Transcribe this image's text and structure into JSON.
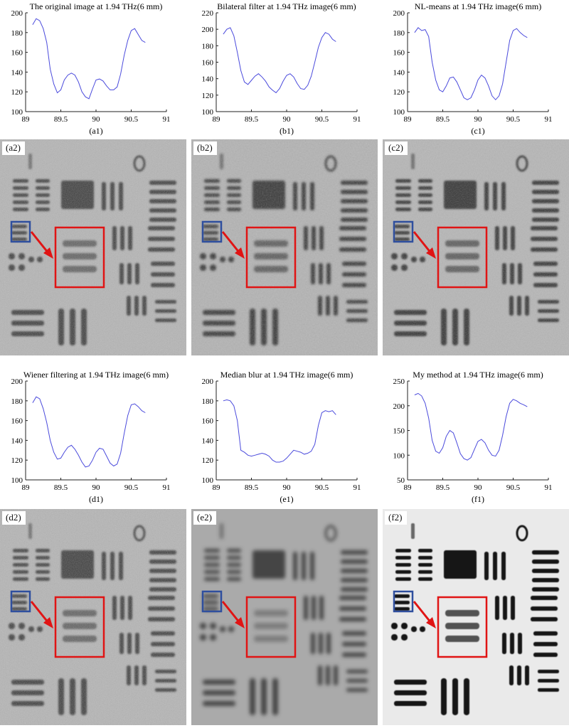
{
  "chart_data": [
    {
      "type": "line",
      "title": "The original image at 1.94 THz(6 mm)",
      "panel_label": "(a1)",
      "xlim": [
        89,
        91
      ],
      "ylim": [
        100,
        200
      ],
      "xticks": [
        89,
        89.5,
        90,
        90.5,
        91
      ],
      "yticks": [
        100,
        120,
        140,
        160,
        180,
        200
      ],
      "grid": false,
      "line_color": "#4a4adc",
      "x": [
        89.1,
        89.15,
        89.2,
        89.25,
        89.3,
        89.35,
        89.4,
        89.45,
        89.5,
        89.55,
        89.6,
        89.65,
        89.7,
        89.75,
        89.8,
        89.85,
        89.9,
        89.95,
        90.0,
        90.05,
        90.1,
        90.15,
        90.2,
        90.25,
        90.3,
        90.35,
        90.4,
        90.45,
        90.5,
        90.55,
        90.6,
        90.65,
        90.7
      ],
      "y": [
        188,
        194,
        192,
        184,
        170,
        143,
        128,
        119,
        122,
        132,
        137,
        139,
        137,
        130,
        120,
        115,
        113,
        123,
        132,
        133,
        131,
        126,
        122,
        122,
        125,
        138,
        157,
        172,
        182,
        184,
        178,
        172,
        170
      ]
    },
    {
      "type": "line",
      "title": "Bilateral filter at 1.94 THz image(6 mm)",
      "panel_label": "(b1)",
      "xlim": [
        89,
        91
      ],
      "ylim": [
        100,
        220
      ],
      "xticks": [
        89,
        89.5,
        90,
        90.5,
        91
      ],
      "yticks": [
        100,
        120,
        140,
        160,
        180,
        200,
        220
      ],
      "grid": false,
      "line_color": "#4a4adc",
      "x": [
        89.1,
        89.15,
        89.2,
        89.25,
        89.3,
        89.35,
        89.4,
        89.45,
        89.5,
        89.55,
        89.6,
        89.65,
        89.7,
        89.75,
        89.8,
        89.85,
        89.9,
        89.95,
        90.0,
        90.05,
        90.1,
        90.15,
        90.2,
        90.25,
        90.3,
        90.35,
        90.4,
        90.45,
        90.5,
        90.55,
        90.6,
        90.65,
        90.7
      ],
      "y": [
        194,
        200,
        202,
        192,
        172,
        150,
        136,
        133,
        138,
        143,
        146,
        142,
        137,
        130,
        126,
        123,
        128,
        137,
        144,
        146,
        142,
        134,
        128,
        127,
        132,
        143,
        160,
        178,
        190,
        196,
        194,
        188,
        185
      ]
    },
    {
      "type": "line",
      "title": "NL-means at 1.94 THz image(6 mm)",
      "panel_label": "(c1)",
      "xlim": [
        89,
        91
      ],
      "ylim": [
        100,
        200
      ],
      "xticks": [
        89,
        89.5,
        90,
        90.5,
        91
      ],
      "yticks": [
        100,
        120,
        140,
        160,
        180,
        200
      ],
      "grid": false,
      "line_color": "#4a4adc",
      "x": [
        89.1,
        89.15,
        89.2,
        89.25,
        89.3,
        89.35,
        89.4,
        89.45,
        89.5,
        89.55,
        89.6,
        89.65,
        89.7,
        89.75,
        89.8,
        89.85,
        89.9,
        89.95,
        90.0,
        90.05,
        90.1,
        90.15,
        90.2,
        90.25,
        90.3,
        90.35,
        90.4,
        90.45,
        90.5,
        90.55,
        90.6,
        90.65,
        90.7
      ],
      "y": [
        180,
        185,
        182,
        183,
        176,
        150,
        132,
        122,
        120,
        126,
        134,
        135,
        130,
        122,
        114,
        112,
        114,
        122,
        132,
        137,
        134,
        126,
        116,
        112,
        116,
        128,
        150,
        172,
        182,
        184,
        180,
        177,
        175
      ]
    },
    {
      "type": "line",
      "title": "Wiener filtering at 1.94 THz image(6 mm)",
      "panel_label": "(d1)",
      "xlim": [
        89,
        91
      ],
      "ylim": [
        100,
        200
      ],
      "xticks": [
        89,
        89.5,
        90,
        90.5,
        91
      ],
      "yticks": [
        100,
        120,
        140,
        160,
        180,
        200
      ],
      "grid": false,
      "line_color": "#4a4adc",
      "x": [
        89.1,
        89.15,
        89.2,
        89.25,
        89.3,
        89.35,
        89.4,
        89.45,
        89.5,
        89.55,
        89.6,
        89.65,
        89.7,
        89.75,
        89.8,
        89.85,
        89.9,
        89.95,
        90.0,
        90.05,
        90.1,
        90.15,
        90.2,
        90.25,
        90.3,
        90.35,
        90.4,
        90.45,
        90.5,
        90.55,
        90.6,
        90.65,
        90.7
      ],
      "y": [
        178,
        184,
        182,
        172,
        158,
        140,
        128,
        121,
        122,
        128,
        133,
        135,
        131,
        125,
        118,
        113,
        114,
        120,
        128,
        132,
        131,
        124,
        117,
        114,
        116,
        127,
        147,
        165,
        176,
        177,
        174,
        170,
        168
      ]
    },
    {
      "type": "line",
      "title": "Median blur at 1.94 THz image(6 mm)",
      "panel_label": "(e1)",
      "xlim": [
        89,
        91
      ],
      "ylim": [
        100,
        200
      ],
      "xticks": [
        89,
        89.5,
        90,
        90.5,
        91
      ],
      "yticks": [
        100,
        120,
        140,
        160,
        180,
        200
      ],
      "grid": false,
      "line_color": "#4a4adc",
      "x": [
        89.1,
        89.15,
        89.2,
        89.25,
        89.3,
        89.35,
        89.4,
        89.45,
        89.5,
        89.55,
        89.6,
        89.65,
        89.7,
        89.75,
        89.8,
        89.85,
        89.9,
        89.95,
        90.0,
        90.05,
        90.1,
        90.15,
        90.2,
        90.25,
        90.3,
        90.35,
        90.4,
        90.45,
        90.5,
        90.55,
        90.6,
        90.65,
        90.7
      ],
      "y": [
        180,
        181,
        180,
        175,
        160,
        130,
        128,
        125,
        124,
        125,
        126,
        127,
        126,
        124,
        120,
        118,
        118,
        119,
        122,
        126,
        130,
        129,
        128,
        126,
        127,
        129,
        136,
        155,
        168,
        170,
        169,
        170,
        166
      ]
    },
    {
      "type": "line",
      "title": "My method at 1.94 THz image(6 mm)",
      "panel_label": "(f1)",
      "xlim": [
        89,
        91
      ],
      "ylim": [
        50,
        250
      ],
      "xticks": [
        89,
        89.5,
        90,
        90.5,
        91
      ],
      "yticks": [
        50,
        100,
        150,
        200,
        250
      ],
      "grid": false,
      "line_color": "#4a4adc",
      "x": [
        89.1,
        89.15,
        89.2,
        89.25,
        89.3,
        89.35,
        89.4,
        89.45,
        89.5,
        89.55,
        89.6,
        89.65,
        89.7,
        89.75,
        89.8,
        89.85,
        89.9,
        89.95,
        90.0,
        90.05,
        90.1,
        90.15,
        90.2,
        90.25,
        90.3,
        90.35,
        90.4,
        90.45,
        90.5,
        90.55,
        90.6,
        90.65,
        90.7
      ],
      "y": [
        222,
        225,
        220,
        205,
        175,
        130,
        108,
        104,
        115,
        138,
        150,
        145,
        125,
        103,
        93,
        90,
        95,
        112,
        128,
        132,
        125,
        110,
        100,
        98,
        110,
        140,
        178,
        205,
        213,
        210,
        205,
        202,
        198
      ]
    }
  ],
  "images": [
    {
      "panel_label": "(a2)",
      "variant": "noisy"
    },
    {
      "panel_label": "(b2)",
      "variant": "smooth"
    },
    {
      "panel_label": "(c2)",
      "variant": "denoised"
    },
    {
      "panel_label": "(d2)",
      "variant": "noisy"
    },
    {
      "panel_label": "(e2)",
      "variant": "blurred"
    },
    {
      "panel_label": "(f2)",
      "variant": "high-contrast"
    }
  ],
  "colors": {
    "plot_line": "#4a4adc",
    "zoom_box": "#e01414",
    "roi_box": "#2f4f9e",
    "arrow": "#e01414"
  }
}
